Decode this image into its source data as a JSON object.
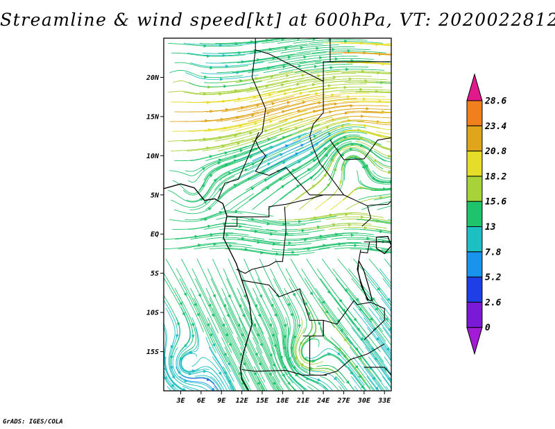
{
  "title": "Streamline & wind speed[kt] at 600hPa, VT: 2020022812",
  "credit": "GrADS: IGES/COLA",
  "map": {
    "lat_labels": [
      "20N",
      "15N",
      "10N",
      "5N",
      "EQ",
      "5S",
      "10S",
      "15S"
    ],
    "lat_values": [
      20,
      15,
      10,
      5,
      0,
      -5,
      -10,
      -15
    ],
    "lon_labels": [
      "3E",
      "6E",
      "9E",
      "12E",
      "15E",
      "18E",
      "21E",
      "24E",
      "27E",
      "30E",
      "33E"
    ],
    "lon_values": [
      3,
      6,
      9,
      12,
      15,
      18,
      21,
      24,
      27,
      30,
      33
    ],
    "lon_range": [
      0.5,
      34
    ],
    "lat_range": [
      -20,
      25
    ]
  },
  "colorbar": {
    "labels": [
      "28.6",
      "23.4",
      "20.8",
      "18.2",
      "15.6",
      "13",
      "7.8",
      "5.2",
      "2.6",
      "0"
    ],
    "colors": [
      "#e2198c",
      "#f07f1e",
      "#dfa51c",
      "#e6dd2a",
      "#a6d23a",
      "#1fc36c",
      "#1ebfc2",
      "#1a93ec",
      "#1f3fe6",
      "#7a19d6",
      "#a31bd6"
    ]
  }
}
